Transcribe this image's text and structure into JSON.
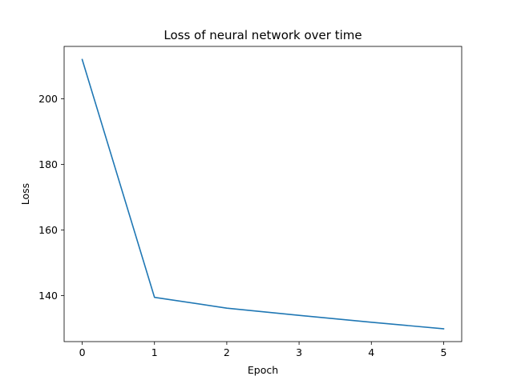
{
  "chart_data": {
    "type": "line",
    "title": "Loss of neural network over time",
    "xlabel": "Epoch",
    "ylabel": "Loss",
    "x": [
      0,
      1,
      2,
      3,
      4,
      5
    ],
    "series": [
      {
        "values": [
          212.0,
          139.5,
          136.2,
          134.0,
          131.9,
          129.9
        ],
        "color": "#1f77b4"
      }
    ],
    "xlim": [
      -0.25,
      5.25
    ],
    "ylim": [
      126,
      216
    ],
    "xticks": [
      0,
      1,
      2,
      3,
      4,
      5
    ],
    "yticks": [
      140,
      160,
      180,
      200
    ],
    "grid": false,
    "legend": false
  }
}
